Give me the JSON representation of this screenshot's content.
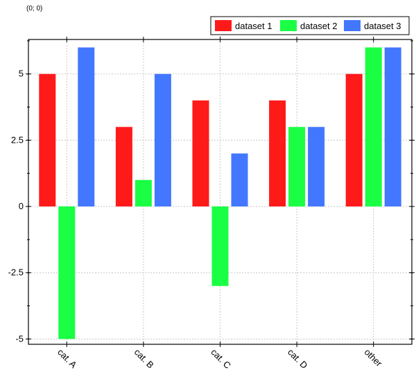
{
  "coordinate_readout": "(0; 0)",
  "chart_data": {
    "type": "bar",
    "categories": [
      "cat. A",
      "cat. B",
      "cat. C",
      "cat. D",
      "other"
    ],
    "series": [
      {
        "name": "dataset 1",
        "color": "#ff1a1a",
        "values": [
          5,
          3,
          4,
          4,
          5
        ]
      },
      {
        "name": "dataset 2",
        "color": "#1aff44",
        "values": [
          -5,
          1,
          -3,
          3,
          6
        ]
      },
      {
        "name": "dataset 3",
        "color": "#4477ff",
        "values": [
          6,
          5,
          2,
          3,
          6
        ]
      }
    ],
    "ylim": [
      -5.2,
      6.3
    ],
    "yticks": [
      -5,
      -2.5,
      0,
      2.5,
      5
    ],
    "ytick_labels": [
      "-5",
      "-2.5",
      "0",
      "2.5",
      "5"
    ],
    "grid": true,
    "legend_position": "top-right",
    "title": "",
    "xlabel": "",
    "ylabel": ""
  }
}
